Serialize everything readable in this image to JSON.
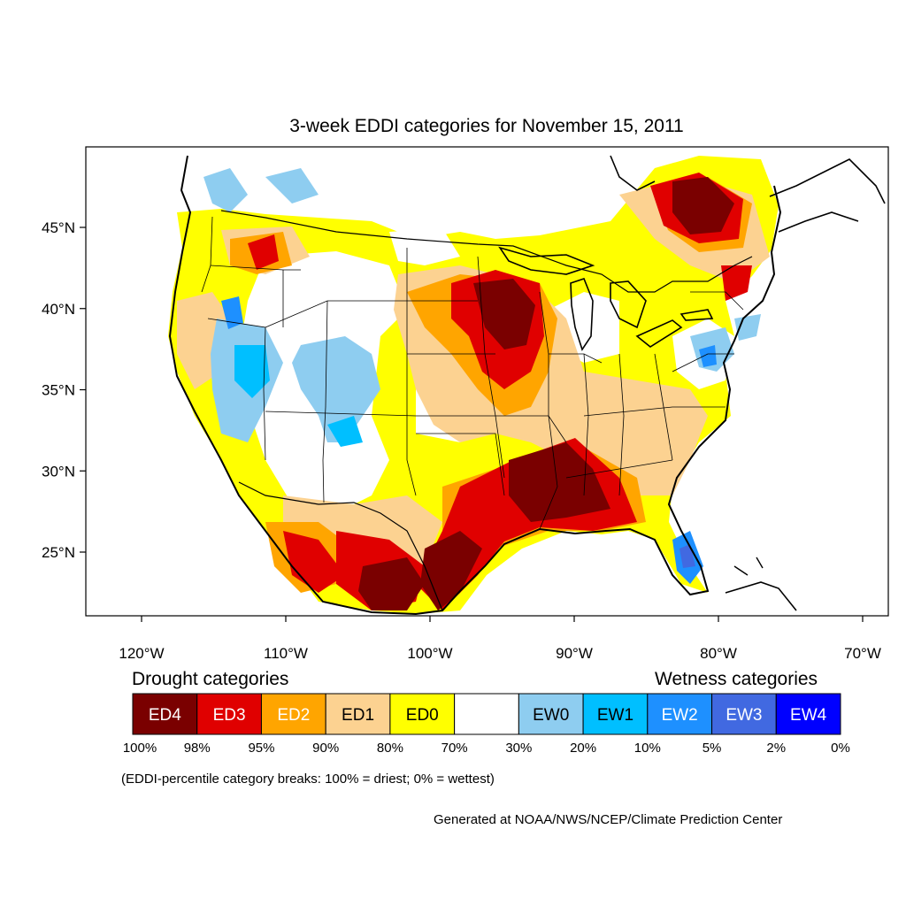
{
  "title": "3-week EDDI categories for November 15, 2011",
  "lat_ticks": [
    {
      "label": "45°N",
      "value": 45
    },
    {
      "label": "40°N",
      "value": 40
    },
    {
      "label": "35°N",
      "value": 35
    },
    {
      "label": "30°N",
      "value": 30
    },
    {
      "label": "25°N",
      "value": 25
    }
  ],
  "lon_ticks": [
    {
      "label": "120°W",
      "value": -120
    },
    {
      "label": "110°W",
      "value": -110
    },
    {
      "label": "100°W",
      "value": -100
    },
    {
      "label": "90°W",
      "value": -90
    },
    {
      "label": "80°W",
      "value": -80
    },
    {
      "label": "70°W",
      "value": -70
    }
  ],
  "legend": {
    "drought_title": "Drought categories",
    "wetness_title": "Wetness categories",
    "categories": [
      {
        "label": "ED4",
        "color": "#7a0000",
        "text_color": "#ffffff"
      },
      {
        "label": "ED3",
        "color": "#e00000",
        "text_color": "#ffffff"
      },
      {
        "label": "ED2",
        "color": "#ffa500",
        "text_color": "#ffffff"
      },
      {
        "label": "ED1",
        "color": "#fcd291",
        "text_color": "#000000"
      },
      {
        "label": "ED0",
        "color": "#ffff00",
        "text_color": "#000000"
      },
      {
        "label": "",
        "color": "#ffffff",
        "text_color": "#000000"
      },
      {
        "label": "EW0",
        "color": "#8ecdf0",
        "text_color": "#000000"
      },
      {
        "label": "EW1",
        "color": "#00bfff",
        "text_color": "#000000"
      },
      {
        "label": "EW2",
        "color": "#1e90ff",
        "text_color": "#ffffff"
      },
      {
        "label": "EW3",
        "color": "#4169e1",
        "text_color": "#ffffff"
      },
      {
        "label": "EW4",
        "color": "#0000ff",
        "text_color": "#ffffff"
      }
    ],
    "breaks": [
      "100%",
      "98%",
      "95%",
      "90%",
      "80%",
      "70%",
      "30%",
      "20%",
      "10%",
      "5%",
      "2%",
      "0%"
    ]
  },
  "note": "(EDDI-percentile category breaks: 100% = driest; 0% = wettest)",
  "credit": "Generated at NOAA/NWS/NCEP/Climate Prediction Center"
}
